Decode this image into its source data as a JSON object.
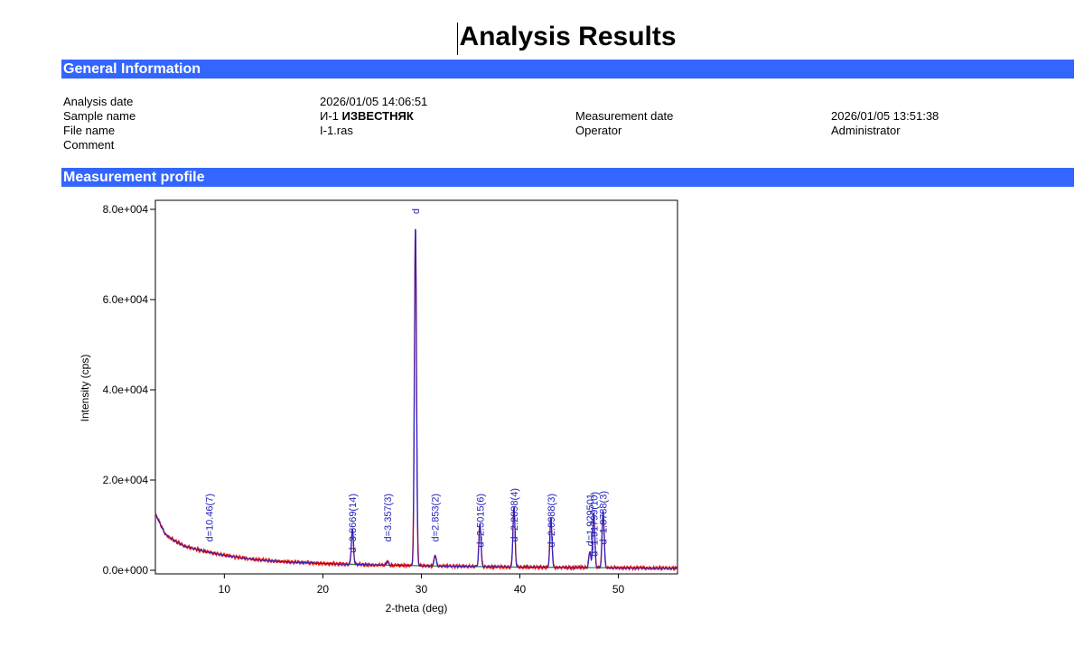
{
  "title": "Analysis Results",
  "sections": {
    "general": "General Information",
    "profile": "Measurement profile"
  },
  "general_info": {
    "analysis_date_label": "Analysis date",
    "analysis_date": "2026/01/05 14:06:51",
    "sample_name_label": "Sample name",
    "sample_name_prefix": "И-1",
    "sample_name_bold": "ИЗВЕСТНЯК",
    "file_name_label": "File name",
    "file_name": "I-1.ras",
    "comment_label": "Comment",
    "measurement_date_label": "Measurement date",
    "measurement_date": "2026/01/05 13:51:38",
    "operator_label": "Operator",
    "operator": "Administrator"
  },
  "colors": {
    "header_bar": "#3366ff",
    "peak_label": "#2222bb",
    "series_measured": "#e01010",
    "series_calc": "#2a22c8",
    "series_background": "#1a8a1a"
  },
  "chart_data": {
    "type": "line",
    "xlabel": "2-theta (deg)",
    "ylabel": "Intensity (cps)",
    "xlim": [
      3,
      56
    ],
    "ylim": [
      0,
      80000
    ],
    "x_ticks": [
      10,
      20,
      30,
      40,
      50
    ],
    "y_ticks": [
      {
        "value": 0,
        "label": "0.0e+000"
      },
      {
        "value": 20000,
        "label": "2.0e+004"
      },
      {
        "value": 40000,
        "label": "4.0e+004"
      },
      {
        "value": 60000,
        "label": "6.0e+004"
      },
      {
        "value": 80000,
        "label": "8.0e+004"
      }
    ],
    "background": [
      [
        3,
        12500
      ],
      [
        4,
        8000
      ],
      [
        5,
        6500
      ],
      [
        6,
        5300
      ],
      [
        8,
        4200
      ],
      [
        10,
        3300
      ],
      [
        13,
        2400
      ],
      [
        16,
        1900
      ],
      [
        20,
        1500
      ],
      [
        25,
        1200
      ],
      [
        30,
        1000
      ],
      [
        40,
        700
      ],
      [
        50,
        550
      ],
      [
        56,
        450
      ]
    ],
    "peaks": [
      {
        "two_theta": 8.45,
        "intensity": 0,
        "label": "d=10.46(7)"
      },
      {
        "two_theta": 23.0,
        "intensity": 7800,
        "label": "d=3.8669(14)"
      },
      {
        "two_theta": 26.55,
        "intensity": 900,
        "label": "d=3.357(3)"
      },
      {
        "two_theta": 29.4,
        "intensity": 75000,
        "label": "d"
      },
      {
        "two_theta": 31.4,
        "intensity": 2400,
        "label": "d=2.853(2)"
      },
      {
        "two_theta": 35.95,
        "intensity": 9500,
        "label": "d=2.5015(6)"
      },
      {
        "two_theta": 39.4,
        "intensity": 13200,
        "label": "d=2.2898(4)"
      },
      {
        "two_theta": 43.15,
        "intensity": 10800,
        "label": "d=2.0988(3)"
      },
      {
        "two_theta": 47.1,
        "intensity": 3500,
        "label": "d=1.929501"
      },
      {
        "two_theta": 47.5,
        "intensity": 12000,
        "label": "d=1.91799(10)"
      },
      {
        "two_theta": 48.45,
        "intensity": 12600,
        "label": "d=1.8788(3)"
      }
    ]
  }
}
